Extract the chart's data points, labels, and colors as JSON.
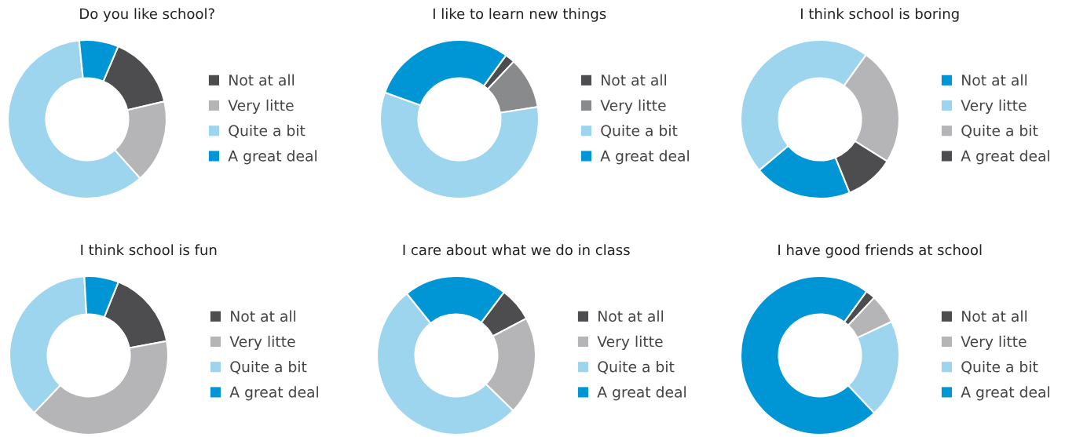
{
  "chart_data": [
    {
      "type": "donut",
      "title": "Do you like school?",
      "categories": [
        "Not at all",
        "Very litte",
        "Quite a bit",
        "A great deal"
      ],
      "values": [
        15,
        17,
        60,
        8
      ],
      "colors": [
        "#4d4d4f",
        "#b5b5b7",
        "#9dd5ee",
        "#0096d6"
      ],
      "legend": "right"
    },
    {
      "type": "donut",
      "title": "I like to learn new things",
      "categories": [
        "Not at all",
        "Very litte",
        "Quite a bit",
        "A great deal"
      ],
      "values": [
        2,
        10.5,
        58,
        29.5
      ],
      "colors": [
        "#4d4d4f",
        "#898a8c",
        "#9dd5ee",
        "#0096d6"
      ],
      "legend": "right"
    },
    {
      "type": "donut",
      "title": "I think school is boring",
      "categories": [
        "Not at all",
        "Very litte",
        "Quite a bit",
        "A great deal"
      ],
      "values": [
        20,
        46,
        24,
        10
      ],
      "colors": [
        "#0096d6",
        "#9dd5ee",
        "#b5b5b7",
        "#4d4d4f"
      ],
      "legend": "right"
    },
    {
      "type": "donut",
      "title": "I think school is fun",
      "categories": [
        "Not at all",
        "Very litte",
        "Quite a bit",
        "A great deal"
      ],
      "values": [
        16,
        40,
        37,
        7
      ],
      "colors": [
        "#4d4d4f",
        "#b5b5b7",
        "#9dd5ee",
        "#0096d6"
      ],
      "legend": "right"
    },
    {
      "type": "donut",
      "title": "I care about what we do in class",
      "categories": [
        "Not at all",
        "Very litte",
        "Quite a bit",
        "A great deal"
      ],
      "values": [
        7,
        20,
        52,
        21
      ],
      "colors": [
        "#4d4d4f",
        "#b5b5b7",
        "#9dd5ee",
        "#0096d6"
      ],
      "legend": "right"
    },
    {
      "type": "donut",
      "title": "I have good friends at school",
      "categories": [
        "Not at all",
        "Very litte",
        "Quite a bit",
        "A great deal"
      ],
      "values": [
        2,
        6,
        20,
        72
      ],
      "colors": [
        "#4d4d4f",
        "#b5b5b7",
        "#9dd5ee",
        "#0096d6"
      ],
      "legend": "right"
    }
  ]
}
